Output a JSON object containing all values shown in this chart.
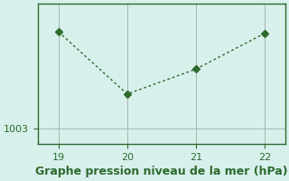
{
  "x": [
    19,
    20,
    21,
    22
  ],
  "y": [
    1009.2,
    1005.2,
    1006.8,
    1009.1
  ],
  "xlim": [
    18.7,
    22.3
  ],
  "ylim": [
    1002.0,
    1011.0
  ],
  "yticks": [
    1003
  ],
  "xticks": [
    19,
    20,
    21,
    22
  ],
  "line_color": "#2d6a2d",
  "marker": "D",
  "marker_size": 4,
  "bg_color": "#d8f0ec",
  "grid_color": "#a0b8b0",
  "axis_color": "#2d6a2d",
  "xlabel": "Graphe pression niveau de la mer (hPa)",
  "xlabel_color": "#2d6a2d",
  "xlabel_fontsize": 9,
  "tick_color": "#2d6a2d",
  "tick_fontsize": 8
}
